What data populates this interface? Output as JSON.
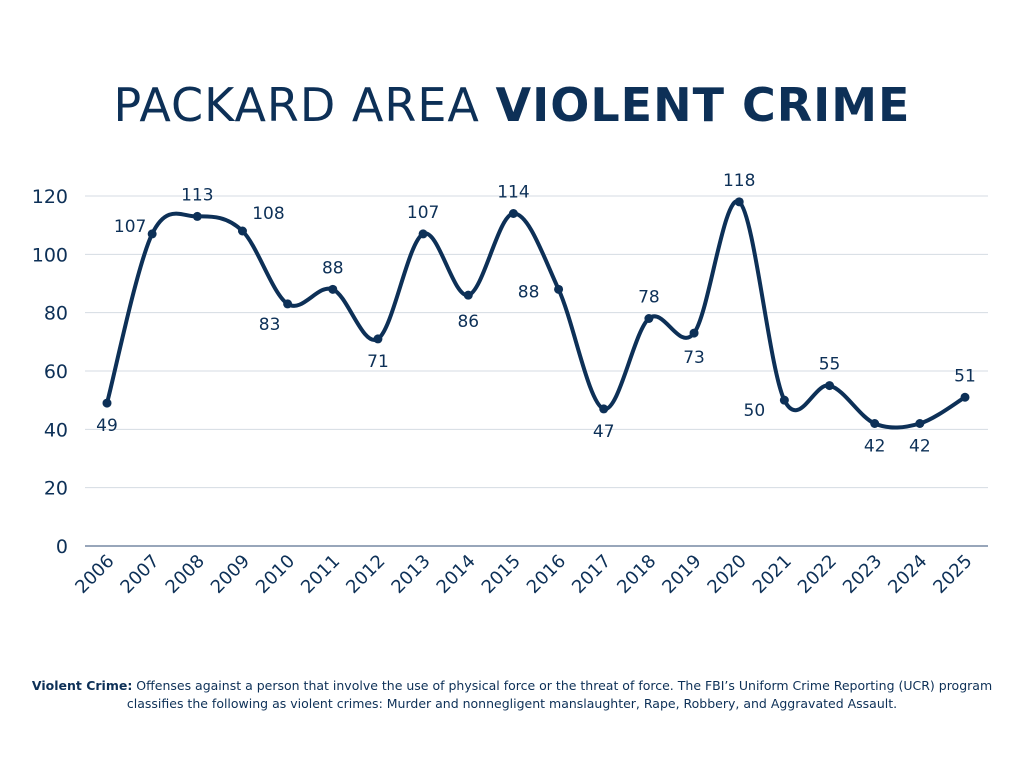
{
  "title": {
    "regular": "PACKARD AREA ",
    "bold": "VIOLENT CRIME"
  },
  "colors": {
    "line": "#0d3057",
    "grid": "#d5dbe3",
    "text": "#0d3057"
  },
  "chart_data": {
    "type": "line",
    "title": "PACKARD AREA VIOLENT CRIME",
    "xlabel": "",
    "ylabel": "",
    "categories": [
      "2006",
      "2007",
      "2008",
      "2009",
      "2010",
      "2011",
      "2012",
      "2013",
      "2014",
      "2015",
      "2016",
      "2017",
      "2018",
      "2019",
      "2020",
      "2021",
      "2022",
      "2023",
      "2024",
      "2025"
    ],
    "values": [
      49,
      107,
      113,
      108,
      83,
      88,
      71,
      107,
      86,
      114,
      88,
      47,
      78,
      73,
      118,
      50,
      55,
      42,
      42,
      51
    ],
    "ylim": [
      0,
      120
    ],
    "yticks": [
      0,
      20,
      40,
      60,
      80,
      100,
      120
    ],
    "grid": true,
    "smooth": true,
    "markers": true,
    "data_labels": true
  },
  "footnote": {
    "term": "Violent Crime:",
    "text": " Offenses against a person that involve the use of physical force or the threat of force. The FBI’s Uniform Crime Reporting (UCR) program classifies the following as violent crimes: Murder and nonnegligent manslaughter, Rape, Robbery, and Aggravated Assault."
  }
}
